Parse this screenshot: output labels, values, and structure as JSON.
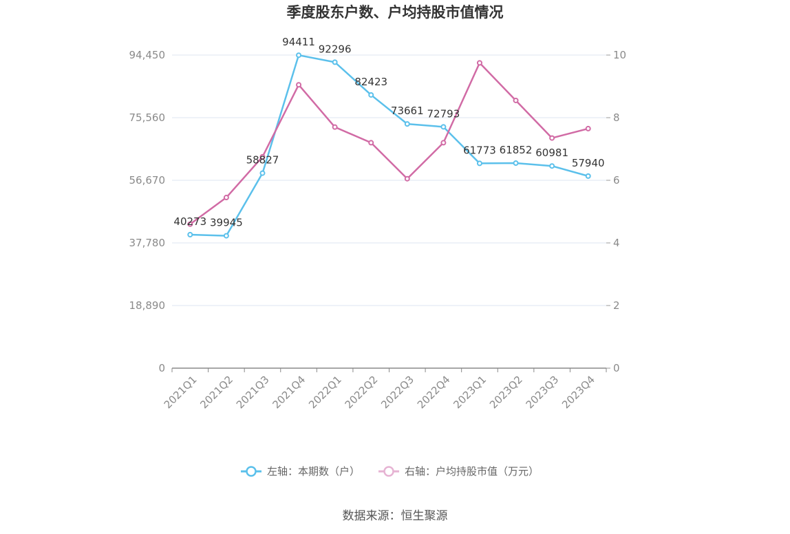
{
  "chart_data": {
    "type": "line",
    "title": "季度股东户数、户均持股市值情况",
    "categories": [
      "2021Q1",
      "2021Q2",
      "2021Q3",
      "2021Q4",
      "2022Q1",
      "2022Q2",
      "2022Q3",
      "2022Q4",
      "2023Q1",
      "2023Q2",
      "2023Q3",
      "2023Q4"
    ],
    "series": [
      {
        "name": "左轴：本期数（户）",
        "axis": "left",
        "color": "#5bc0eb",
        "values": [
          40273,
          39945,
          58827,
          94411,
          92296,
          82423,
          73661,
          72793,
          61773,
          61852,
          60981,
          57940
        ],
        "data_labels": [
          "40273",
          "39945",
          "58827",
          "94411",
          "92296",
          "82423",
          "73661",
          "72793",
          "61773",
          "61852",
          "60981",
          "57940"
        ]
      },
      {
        "name": "右轴：户均持股市值（万元）",
        "axis": "right",
        "color": "#d16ba5",
        "values": [
          4.6,
          5.45,
          6.75,
          9.05,
          7.7,
          7.2,
          6.05,
          7.2,
          9.75,
          8.55,
          7.35,
          7.65
        ]
      }
    ],
    "left_axis": {
      "ticks": [
        0,
        18890,
        37780,
        56670,
        75560,
        94450
      ],
      "tick_labels": [
        "0",
        "18,890",
        "37,780",
        "56,670",
        "75,560",
        "94,450"
      ],
      "range": [
        0,
        94450
      ]
    },
    "right_axis": {
      "ticks": [
        0,
        2,
        4,
        6,
        8,
        10
      ],
      "tick_labels": [
        "0",
        "2",
        "4",
        "6",
        "8",
        "10"
      ],
      "range": [
        0,
        10
      ]
    },
    "grid": true,
    "legend_position": "bottom",
    "source": "数据来源：恒生聚源"
  }
}
